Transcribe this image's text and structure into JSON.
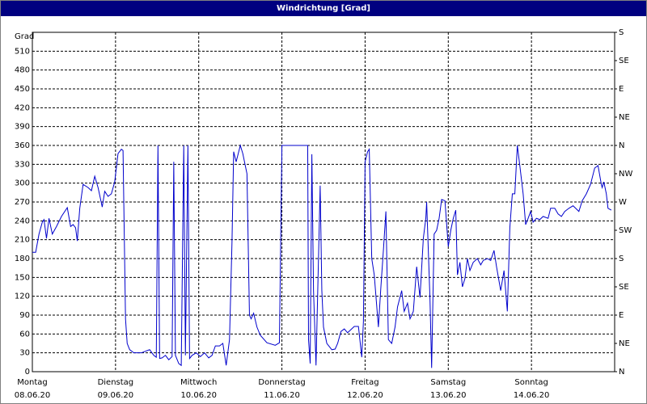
{
  "chart_data": {
    "type": "line",
    "title": "Windrichtung [Grad]",
    "ylabel": "Grad",
    "color": "#0000cc",
    "grid": true,
    "xlim": [
      0,
      7
    ],
    "xticks": [
      {
        "value": 0,
        "label": "Montag"
      },
      {
        "value": 1,
        "label": "Dienstag"
      },
      {
        "value": 2,
        "label": "Mittwoch"
      },
      {
        "value": 3,
        "label": "Donnerstag"
      },
      {
        "value": 4,
        "label": "Freitag"
      },
      {
        "value": 5,
        "label": "Samstag"
      },
      {
        "value": 6,
        "label": "Sonntag"
      }
    ],
    "xtick_dates": [
      "08.06.20",
      "09.06.20",
      "10.06.20",
      "11.06.20",
      "12.06.20",
      "13.06.20",
      "14.06.20"
    ],
    "ylim": [
      0,
      540
    ],
    "yticks": [
      0,
      30,
      60,
      90,
      120,
      150,
      180,
      210,
      240,
      270,
      300,
      330,
      360,
      390,
      420,
      450,
      480,
      510
    ],
    "y2lim": [
      0,
      540
    ],
    "y2ticks": [
      {
        "value": 0,
        "label": "N"
      },
      {
        "value": 45,
        "label": "NE"
      },
      {
        "value": 90,
        "label": "E"
      },
      {
        "value": 135,
        "label": "SE"
      },
      {
        "value": 180,
        "label": "S"
      },
      {
        "value": 225,
        "label": "SW"
      },
      {
        "value": 270,
        "label": "W"
      },
      {
        "value": 315,
        "label": "NW"
      },
      {
        "value": 360,
        "label": "N"
      },
      {
        "value": 405,
        "label": "NE"
      },
      {
        "value": 450,
        "label": "E"
      },
      {
        "value": 495,
        "label": "SE"
      },
      {
        "value": 540,
        "label": "S"
      }
    ],
    "x": [
      0,
      0.04,
      0.08,
      0.12,
      0.14,
      0.17,
      0.2,
      0.24,
      0.29,
      0.35,
      0.42,
      0.46,
      0.49,
      0.52,
      0.54,
      0.57,
      0.61,
      0.67,
      0.71,
      0.75,
      0.79,
      0.84,
      0.87,
      0.91,
      0.95,
      0.99,
      1.03,
      1.07,
      1.09,
      1.12,
      1.14,
      1.17,
      1.22,
      1.31,
      1.41,
      1.46,
      1.49,
      1.51,
      1.53,
      1.56,
      1.6,
      1.64,
      1.68,
      1.7,
      1.72,
      1.76,
      1.79,
      1.82,
      1.84,
      1.87,
      1.89,
      1.92,
      1.97,
      2.02,
      2.07,
      2.12,
      2.16,
      2.2,
      2.25,
      2.29,
      2.33,
      2.37,
      2.4,
      2.42,
      2.45,
      2.5,
      2.53,
      2.58,
      2.61,
      2.63,
      2.66,
      2.7,
      2.74,
      2.82,
      2.92,
      2.97,
      3.0,
      3.29,
      3.31,
      3.32,
      3.34,
      3.36,
      3.38,
      3.41,
      3.46,
      3.48,
      3.5,
      3.54,
      3.6,
      3.64,
      3.67,
      3.71,
      3.75,
      3.79,
      3.83,
      3.87,
      3.92,
      3.96,
      3.98,
      4.0,
      4.03,
      4.05,
      4.08,
      4.11,
      4.16,
      4.19,
      4.22,
      4.25,
      4.28,
      4.32,
      4.36,
      4.39,
      4.44,
      4.47,
      4.51,
      4.54,
      4.58,
      4.62,
      4.66,
      4.7,
      4.73,
      4.74,
      4.78,
      4.8,
      4.83,
      4.86,
      4.89,
      4.92,
      4.96,
      5.0,
      5.03,
      5.06,
      5.09,
      5.11,
      5.14,
      5.17,
      5.2,
      5.23,
      5.26,
      5.3,
      5.35,
      5.39,
      5.42,
      5.47,
      5.51,
      5.55,
      5.58,
      5.63,
      5.67,
      5.71,
      5.74,
      5.77,
      5.8,
      5.83,
      5.86,
      5.9,
      5.93,
      5.96,
      5.99,
      6.02,
      6.06,
      6.1,
      6.14,
      6.2,
      6.23,
      6.28,
      6.32,
      6.36,
      6.4,
      6.45,
      6.5,
      6.57,
      6.61,
      6.66,
      6.71,
      6.76,
      6.8,
      6.84,
      6.85,
      6.87,
      6.9,
      6.92,
      6.96
    ],
    "values": [
      190,
      190,
      219,
      238,
      242,
      212,
      244,
      219,
      231,
      247,
      261,
      231,
      234,
      229,
      208,
      260,
      298,
      293,
      288,
      311,
      293,
      262,
      287,
      279,
      283,
      302,
      347,
      354,
      352,
      84,
      45,
      35,
      30,
      30,
      35,
      26,
      23,
      360,
      21,
      22,
      26,
      19,
      24,
      334,
      26,
      13,
      10,
      360,
      26,
      360,
      21,
      26,
      30,
      24,
      30,
      22,
      26,
      41,
      41,
      45,
      10,
      51,
      206,
      350,
      334,
      360,
      347,
      315,
      90,
      84,
      93,
      71,
      58,
      46,
      42,
      46,
      360,
      360,
      360,
      51,
      13,
      346,
      129,
      10,
      296,
      129,
      71,
      45,
      35,
      36,
      45,
      64,
      68,
      62,
      67,
      72,
      72,
      23,
      80,
      334,
      350,
      354,
      180,
      154,
      71,
      135,
      193,
      255,
      51,
      45,
      71,
      103,
      129,
      96,
      109,
      84,
      96,
      167,
      118,
      212,
      244,
      270,
      116,
      6,
      219,
      225,
      244,
      274,
      272,
      199,
      225,
      244,
      257,
      154,
      174,
      135,
      148,
      180,
      161,
      174,
      180,
      170,
      177,
      180,
      177,
      193,
      167,
      129,
      161,
      96,
      229,
      283,
      283,
      360,
      328,
      283,
      234,
      244,
      255,
      238,
      244,
      242,
      247,
      244,
      260,
      260,
      251,
      247,
      255,
      260,
      264,
      255,
      272,
      283,
      298,
      324,
      328,
      298,
      293,
      302,
      283,
      260,
      257
    ]
  }
}
